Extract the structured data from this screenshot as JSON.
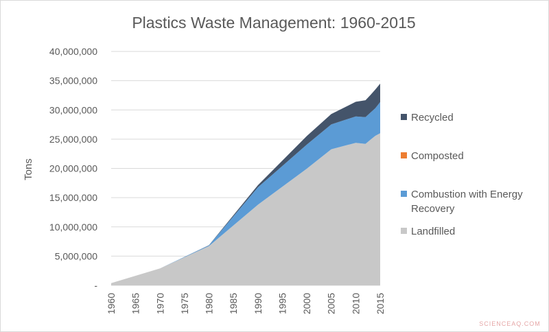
{
  "chart_data": {
    "type": "area",
    "title": "Plastics Waste Management: 1960-2015",
    "xlabel": "",
    "ylabel": "Tons",
    "x": [
      1960,
      1970,
      1980,
      1990,
      2000,
      2005,
      2010,
      2012,
      2013,
      2014,
      2015
    ],
    "x_ticks": [
      "1960",
      "1965",
      "1970",
      "1975",
      "1980",
      "1985",
      "1990",
      "1995",
      "2000",
      "2005",
      "2010",
      "2015"
    ],
    "y_ticks": [
      "-",
      "5,000,000",
      "10,000,000",
      "15,000,000",
      "20,000,000",
      "25,000,000",
      "30,000,000",
      "35,000,000",
      "40,000,000"
    ],
    "ylim": [
      0,
      40000000
    ],
    "grid": true,
    "legend_position": "right",
    "stacked": true,
    "series": [
      {
        "name": "Landfilled",
        "color": "#c8c8c8",
        "values": [
          390000,
          2900000,
          6710000,
          13780000,
          19950000,
          23270000,
          24370000,
          24190000,
          24890000,
          25570000,
          26010000
        ]
      },
      {
        "name": "Combustion with Energy Recovery",
        "color": "#5b9bd5",
        "values": [
          0,
          0,
          140000,
          2980000,
          4120000,
          4250000,
          4520000,
          4590000,
          4650000,
          4730000,
          5350000
        ]
      },
      {
        "name": "Composted",
        "color": "#ed7d31",
        "values": [
          0,
          0,
          0,
          0,
          0,
          0,
          0,
          0,
          0,
          0,
          0
        ]
      },
      {
        "name": "Recycled",
        "color": "#44546a",
        "values": [
          0,
          0,
          20000,
          370000,
          1480000,
          1780000,
          2500000,
          2880000,
          3000000,
          3190000,
          3140000
        ]
      }
    ],
    "legend_order": [
      "Recycled",
      "Composted",
      "Combustion with Energy Recovery",
      "Landfilled"
    ]
  },
  "legend_lines": {
    "Recycled": [
      "Recycled"
    ],
    "Composted": [
      "Composted"
    ],
    "Combustion with Energy Recovery": [
      "Combustion with Energy",
      "Recovery"
    ],
    "Landfilled": [
      "Landfilled"
    ]
  },
  "watermark": "SCIENCEAQ.COM"
}
